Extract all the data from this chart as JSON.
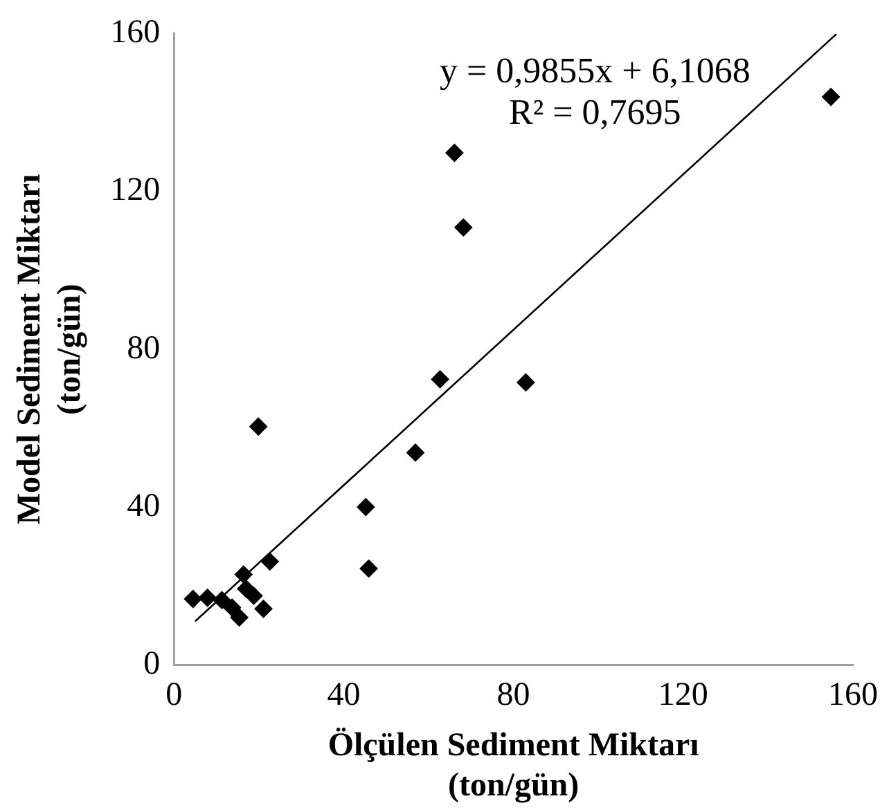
{
  "chart_data": {
    "type": "scatter",
    "xlabel": "Ölçülen Sediment Miktarı (ton/gün)",
    "ylabel": "Model Sediment Miktarı (ton/gün)",
    "annotations": [
      "y = 0,9855x + 6,1068",
      "R² = 0,7695"
    ],
    "xlim": [
      0,
      160
    ],
    "ylim": [
      0,
      160
    ],
    "xticks": [
      0,
      40,
      80,
      120,
      160
    ],
    "yticks": [
      0,
      40,
      80,
      120,
      160
    ],
    "grid": false,
    "legend": false,
    "marker": "diamond",
    "series": [
      {
        "color": "#000000",
        "x": [
          154.8,
          66.1,
          68.2,
          62.7,
          82.9,
          19.9,
          56.9,
          45.2,
          45.9,
          22.6,
          16.4,
          4.5,
          7.9,
          11.3,
          13.7,
          15.4,
          17,
          21.1,
          18.8
        ],
        "values": [
          144,
          129.8,
          110.9,
          72.4,
          71.6,
          60.4,
          53.8,
          40,
          24.4,
          26.2,
          22.9,
          16.7,
          17,
          16.4,
          14.5,
          12,
          19.3,
          14.2,
          17.5
        ]
      },
      {
        "type": "line",
        "color": "#000000",
        "marker": "none",
        "x": [
          5,
          156.1
        ],
        "values": [
          11.03,
          159.94
        ]
      }
    ]
  }
}
